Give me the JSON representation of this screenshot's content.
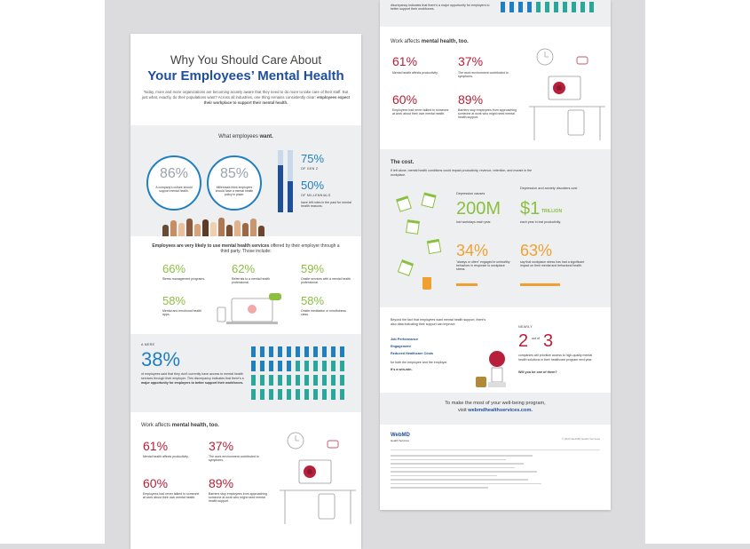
{
  "left": {
    "title_line1": "Why You Should Care About",
    "title_line2": "Your Employees’ Mental Health",
    "intro": "Today, more and more organizations are becoming acutely aware that they need to do more to take care of their staff. But just what, exactly, do their populations want? Across all industries, one thing remains consistently clear:",
    "intro_bold": "employees expect their workplace to support their mental health.",
    "wants": {
      "heading": "What employees",
      "heading_bold": "want.",
      "stat1": {
        "value": "86%",
        "text": "A company's culture should support mental health."
      },
      "stat2": {
        "value": "85%",
        "text": "Millennials think employers should have a mental health policy in place."
      },
      "stat3": {
        "value": "75%",
        "label": "OF GEN Z"
      },
      "stat4": {
        "value": "50%",
        "label": "OF MILLENNIALS"
      },
      "stat_note": "have left roles in the past for mental health reasons.",
      "gen_z_fill": 0.75,
      "millennials_fill": 0.5
    },
    "services": {
      "heading_bold": "Employees are very likely to use mental health services",
      "heading_rest": "offered by their employer through a third party. Those include:",
      "items": [
        {
          "value": "66%",
          "text": "Stress management programs."
        },
        {
          "value": "62%",
          "text": "Referrals to a mental health professional."
        },
        {
          "value": "59%",
          "text": "Onsite services with a mental health professional."
        },
        {
          "value": "58%",
          "text": "Mental and emotional health apps."
        },
        {
          "value": "58%",
          "text": "Onsite meditation or mindfulness class."
        }
      ]
    },
    "awareness": {
      "label": "A MERE",
      "value": "38%",
      "text": "of employees said that they don't currently have access to mental health services through their employer. This discrepancy indicates that there's a",
      "text_bold": "major opportunity for employers to better support their workforces."
    },
    "work": {
      "heading": "Work affects",
      "heading_bold": "mental health, too.",
      "items": [
        {
          "value": "61%",
          "text": "Mental health affects productivity."
        },
        {
          "value": "37%",
          "text": "The work environment contributed to symptoms."
        },
        {
          "value": "60%",
          "text": "Employees had never talked to someone at work about their own mental health."
        },
        {
          "value": "89%",
          "text": "Barriers stop employees from approaching someone at work who might need mental health support."
        }
      ]
    }
  },
  "right": {
    "top_text": "discrepancy indicates that there's a major opportunity for employers to better support their workforces.",
    "work": {
      "heading": "Work affects",
      "heading_bold": "mental health, too.",
      "items": [
        {
          "value": "61%",
          "text": "Mental health affects productivity."
        },
        {
          "value": "37%",
          "text": "The work environment contributed to symptoms."
        },
        {
          "value": "60%",
          "text": "Employees had never talked to someone at work about their own mental health."
        },
        {
          "value": "89%",
          "text": "Barriers stop employees from approaching someone at work who might need mental health support."
        }
      ]
    },
    "cost": {
      "heading": "The cost.",
      "intro": "If left alone, mental health conditions could impact productivity, revenue, retention, and morale in the workplace.",
      "depression_label": "Depression causes",
      "depression_value": "200M",
      "depression_text": "lost workdays each year.",
      "anxiety_label": "Depression and anxiety disorders cost",
      "anxiety_value": "$1",
      "anxiety_unit": "TRILLION",
      "anxiety_text": "each year in lost productivity.",
      "stat34_value": "34%",
      "stat34_text": "\"always or often\" engaged in unhealthy behaviors in response to workplace stress.",
      "stat63_value": "63%",
      "stat63_text": "say that workplace stress has had a significant impact on their mental and behavioral health.",
      "stat34_fill": 0.34,
      "stat63_fill": 0.63
    },
    "benefits": {
      "intro": "Beyond the fact that employees want mental health support, there's also data indicating their support can improve:",
      "links": [
        "Job Performance",
        "Engagement",
        "Reduced Healthcare Costs"
      ],
      "outro": "for both the employee and the employer.",
      "outro_bold": "It's a win-win.",
      "nearly": "NEARLY",
      "two": "2",
      "out_of": "out of",
      "three": "3",
      "nearly_text": "companies will prioritize access to high-quality mental health solutions in their healthcare program next year.",
      "nearly_bold": "Will you be one of them?"
    },
    "cta": {
      "line1": "To make the most of your well-being program,",
      "line2": "visit",
      "link": "webmdhealthservices.com."
    },
    "footer": {
      "logo": "WebMD",
      "logo_sub": "Health Services",
      "copyright": "© 2022 WebMD Health Services"
    }
  },
  "colors": {
    "blue": "#1f7fc0",
    "navy": "#1f4e9c",
    "green": "#8bbf3f",
    "red": "#b7203a",
    "orange": "#f0a030"
  }
}
